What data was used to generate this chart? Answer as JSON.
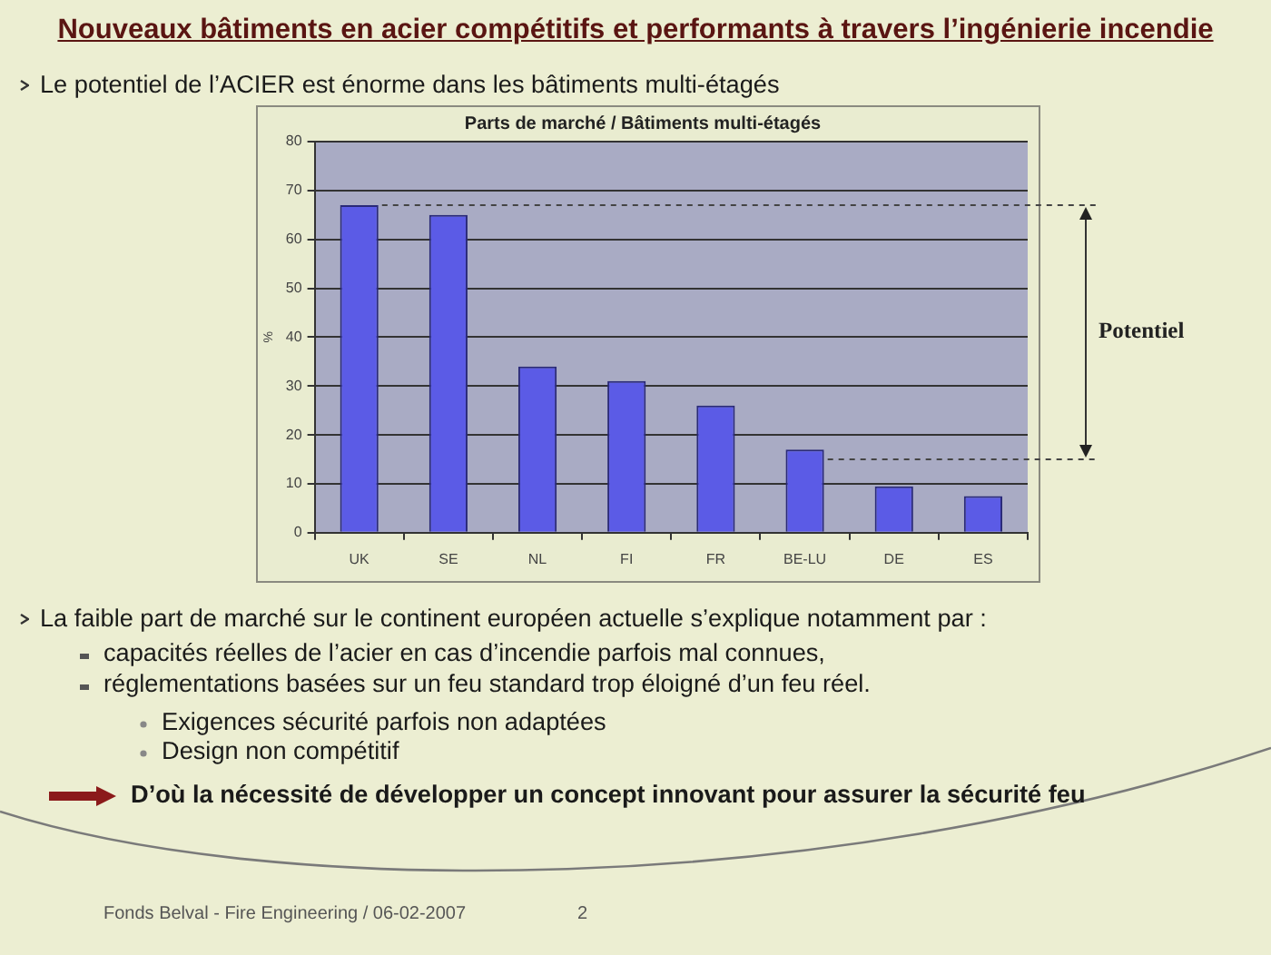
{
  "chart_data": {
    "type": "bar",
    "title": "Parts de marché / Bâtiments multi-étagés",
    "ylabel": "%",
    "categories": [
      "UK",
      "SE",
      "NL",
      "FI",
      "FR",
      "BE-LU",
      "DE",
      "ES"
    ],
    "values": [
      67,
      65,
      34,
      31,
      26,
      17,
      9.5,
      7.5
    ],
    "color": "#5b5be6",
    "ylim": [
      0,
      80
    ],
    "yticks": [
      0,
      10,
      20,
      30,
      40,
      50,
      60,
      70,
      80
    ],
    "grid": "y",
    "ref_lines": [
      {
        "axis": "y",
        "value": 67,
        "line_style": "dashed",
        "color": "#444444"
      },
      {
        "axis": "y",
        "value": 15,
        "line_style": "dashed",
        "color": "#444444"
      }
    ],
    "annotations": [
      "Nouveaux bâtiments en acier compétitifs et performants à travers l’ingénierie incendie",
      "Le potentiel de l’ACIER est énorme dans les bâtiments multi-étagés",
      "Potentiel",
      "La faible part de marché sur le continent européen actuelle s’explique notamment par :",
      "capacités réelles de l’acier en cas d’incendie parfois mal connues,",
      "réglementations basées sur un feu standard trop éloigné d’un feu réel.",
      "Exigences sécurité parfois non adaptées",
      "Design non compétitif",
      "D’où la nécessité de développer un concept innovant pour assurer la sécurité feu",
      "Fonds Belval - Fire Engineering / 06-02-2007",
      "2"
    ]
  }
}
